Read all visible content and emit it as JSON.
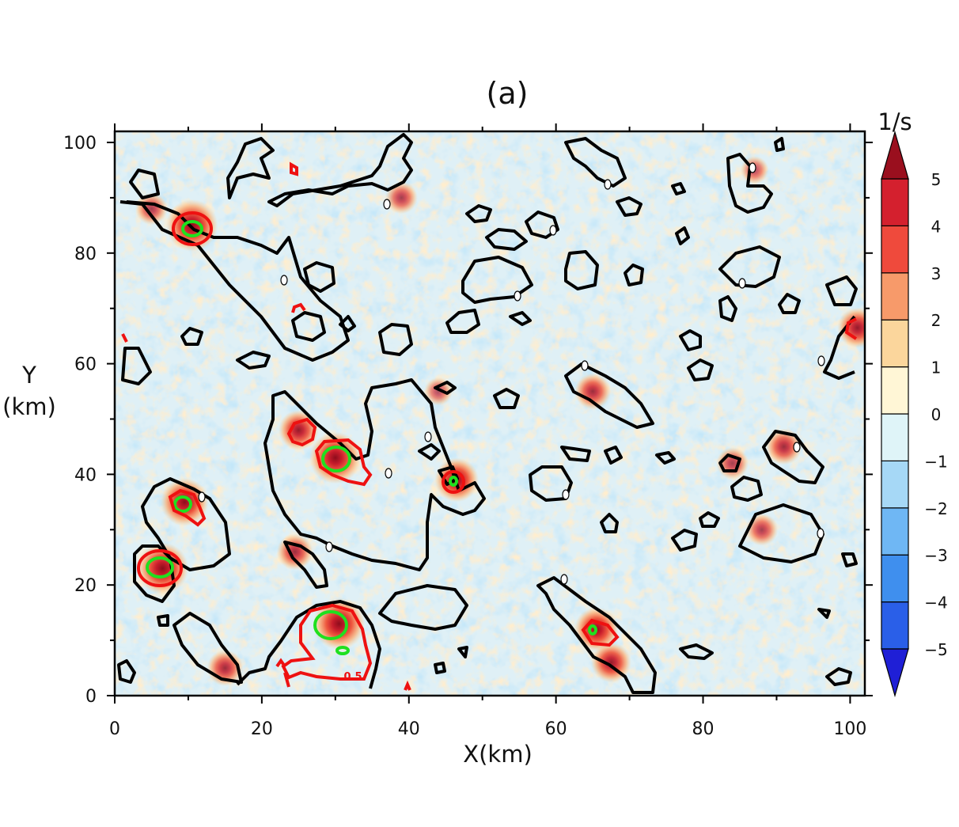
{
  "chart_data": {
    "type": "heatmap",
    "title": "(a)",
    "xlabel": "X(km)",
    "ylabel_line1": "Y",
    "ylabel_line2": "(km)",
    "xlim": [
      0,
      102
    ],
    "ylim": [
      0,
      102
    ],
    "xticks": [
      0,
      20,
      40,
      60,
      80,
      100
    ],
    "yticks": [
      0,
      20,
      40,
      60,
      80,
      100
    ],
    "colorbar": {
      "units": "1/s",
      "levels": [
        -5,
        -4,
        -3,
        -2,
        -1,
        0,
        1,
        2,
        3,
        4,
        5
      ],
      "level_labels": [
        "−5",
        "−4",
        "−3",
        "−2",
        "−1",
        "0",
        "1",
        "2",
        "3",
        "4",
        "5"
      ],
      "colors": [
        "#1f1fd6",
        "#2a5fe8",
        "#3f8fee",
        "#6fb7f4",
        "#a6d8f6",
        "#dff4f8",
        "#fff6d6",
        "#fbd69c",
        "#f79a6a",
        "#ef4a3c",
        "#d4202e",
        "#9a0f1e"
      ],
      "extend": "both"
    },
    "contours": {
      "black_level": "0",
      "red_label": "0.5",
      "red_small_label": "0",
      "peaks": [
        {
          "x": 10.5,
          "y": 85,
          "value": 5
        },
        {
          "x": 30,
          "y": 43,
          "value": 5
        },
        {
          "x": 9.5,
          "y": 35,
          "value": 4.5
        },
        {
          "x": 6.5,
          "y": 23,
          "value": 5
        },
        {
          "x": 30.5,
          "y": 13,
          "value": 5
        },
        {
          "x": 46.5,
          "y": 39,
          "value": 4
        },
        {
          "x": 65.5,
          "y": 12,
          "value": 4
        },
        {
          "x": 67.5,
          "y": 6,
          "value": 3.5
        },
        {
          "x": 101,
          "y": 66.5,
          "value": 3.5
        },
        {
          "x": 25,
          "y": 48,
          "value": 3.5
        },
        {
          "x": 24.5,
          "y": 26,
          "value": 3
        },
        {
          "x": 15,
          "y": 5,
          "value": 3
        },
        {
          "x": 65,
          "y": 55,
          "value": 3
        },
        {
          "x": 91,
          "y": 45,
          "value": 3
        },
        {
          "x": 88,
          "y": 30,
          "value": 2.5
        },
        {
          "x": 39,
          "y": 90,
          "value": 2.5
        },
        {
          "x": 44,
          "y": 55,
          "value": 2
        },
        {
          "x": 84,
          "y": 42,
          "value": 2.5
        },
        {
          "x": 5,
          "y": 88,
          "value": 2.5
        },
        {
          "x": 87,
          "y": 95,
          "value": 2
        }
      ]
    }
  }
}
